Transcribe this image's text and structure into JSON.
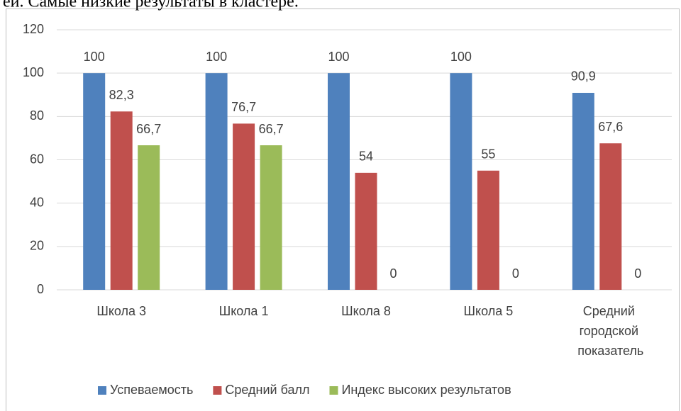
{
  "text_above": "ей. Самые низкие результаты в кластере.",
  "chart_data": {
    "type": "bar",
    "categories": [
      "Школа 3",
      "Школа 1",
      "Школа 8",
      "Школа 5",
      "Средний городской показатель"
    ],
    "series": [
      {
        "name": "Успеваемость",
        "color": "#4f81bd",
        "values": [
          100,
          100,
          100,
          100,
          90.9
        ],
        "value_labels": [
          "100",
          "100",
          "100",
          "100",
          "90,9"
        ]
      },
      {
        "name": "Средний балл",
        "color": "#c0504d",
        "values": [
          82.3,
          76.7,
          54,
          55,
          67.6
        ],
        "value_labels": [
          "82,3",
          "76,7",
          "54",
          "55",
          "67,6"
        ]
      },
      {
        "name": "Индекс высоких результатов",
        "color": "#9bbb59",
        "values": [
          66.7,
          66.7,
          0,
          0,
          0
        ],
        "value_labels": [
          "66,7",
          "66,7",
          "0",
          "0",
          "0"
        ]
      }
    ],
    "ylim": [
      0,
      120
    ],
    "yticks": [
      0,
      20,
      40,
      60,
      80,
      100,
      120
    ],
    "grid": true,
    "legend": "bottom"
  }
}
